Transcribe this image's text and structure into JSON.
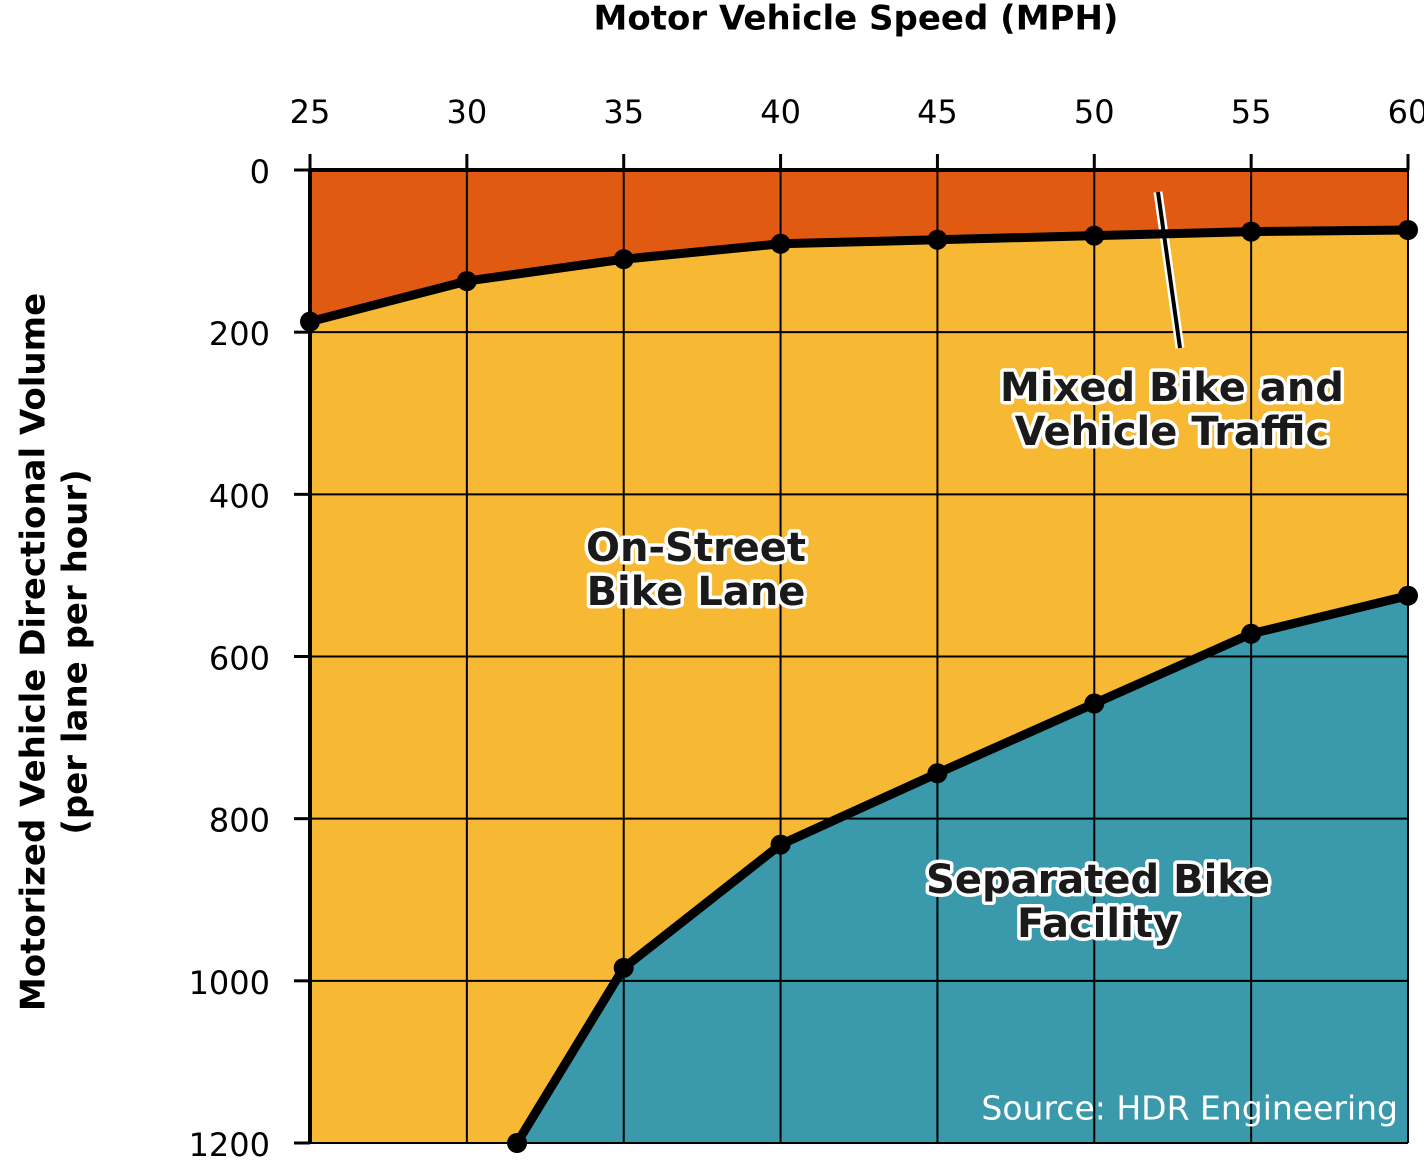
{
  "chart_data": {
    "type": "area",
    "title": "Motor Vehicle Speed (MPH)",
    "ylabel": [
      "Motorized Vehicle Directional Volume",
      "(per lane per hour)"
    ],
    "xlim": [
      25,
      60
    ],
    "xticks": [
      25,
      30,
      35,
      40,
      45,
      50,
      55,
      60
    ],
    "ylim": [
      0,
      1200
    ],
    "yticks": [
      0,
      200,
      400,
      600,
      800,
      1000,
      1200
    ],
    "y_inverted": true,
    "x_axis_position": "top",
    "grid": true,
    "area_colors": [
      "#e05a12",
      "#f7b933",
      "#3a9aab"
    ],
    "line_color": "#000000",
    "series": [
      {
        "x": [
          25,
          30,
          35,
          40,
          45,
          50,
          55,
          60
        ],
        "values": [
          187,
          137,
          110,
          91,
          86,
          81,
          76,
          74
        ]
      },
      {
        "x": [
          31.6,
          35,
          40,
          45,
          50,
          55,
          60
        ],
        "values": [
          1200,
          984,
          832,
          744,
          658,
          572,
          525
        ]
      }
    ],
    "annotations": [
      {
        "text": [
          "Mixed Bike and",
          "Vehicle Traffic"
        ]
      },
      {
        "text": [
          "On-Street",
          "Bike Lane"
        ]
      },
      {
        "text": [
          "Separated Bike",
          "Facility"
        ]
      }
    ],
    "source": "Source: HDR Engineering"
  }
}
